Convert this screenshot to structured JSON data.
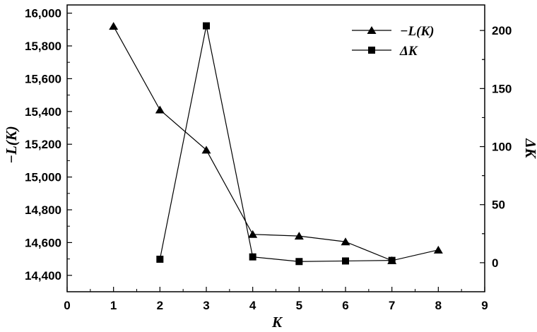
{
  "chart_data": {
    "type": "line",
    "xlabel": "K",
    "ylabel_left": "−L(K)",
    "ylabel_right": "ΔK",
    "xlim": [
      0,
      9
    ],
    "x_ticks": [
      0,
      1,
      2,
      3,
      4,
      5,
      6,
      7,
      8,
      9
    ],
    "ylim_left": [
      14300,
      16050
    ],
    "y_ticks_left": [
      14400,
      14600,
      14800,
      15000,
      15200,
      15400,
      15600,
      15800,
      16000
    ],
    "y_tick_labels_left": [
      "14,400",
      "14,600",
      "14,800",
      "15,000",
      "15,200",
      "15,400",
      "15,600",
      "15,800",
      "16,000"
    ],
    "ylim_right": [
      -25,
      222
    ],
    "y_ticks_right": [
      0,
      50,
      100,
      150,
      200
    ],
    "y_tick_labels_right": [
      "0",
      "50",
      "100",
      "150",
      "200"
    ],
    "legend_position": "top-right",
    "grid": false,
    "series": [
      {
        "name": "−L(K)",
        "axis": "left",
        "marker": "triangle",
        "x": [
          1,
          2,
          3,
          4,
          5,
          6,
          7,
          8
        ],
        "y": [
          15920,
          15410,
          15165,
          14650,
          14640,
          14605,
          14490,
          14555
        ]
      },
      {
        "name": "ΔK",
        "axis": "right",
        "marker": "square",
        "x": [
          2,
          3,
          4,
          5,
          6,
          7
        ],
        "y": [
          3,
          204,
          5,
          1,
          1.5,
          2
        ]
      }
    ]
  }
}
